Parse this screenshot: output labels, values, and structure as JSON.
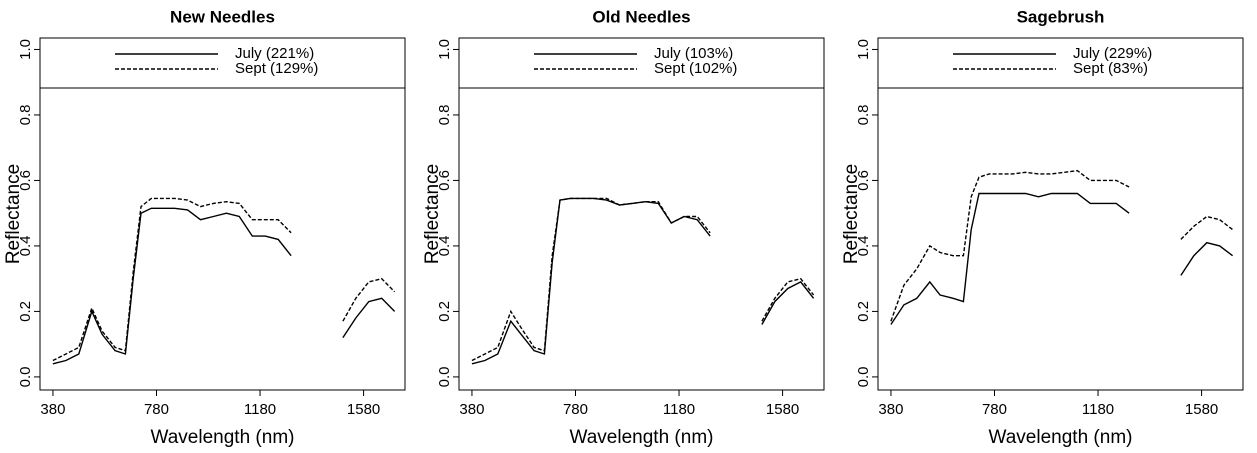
{
  "chart_data": [
    {
      "type": "line",
      "title": "New Needles",
      "x_label": "Wavelength (nm)",
      "y_label": "Reflectance",
      "x": [
        380,
        430,
        480,
        530,
        570,
        620,
        660,
        690,
        720,
        760,
        800,
        850,
        900,
        950,
        1000,
        1050,
        1100,
        1150,
        1200,
        1250,
        1300,
        1400,
        1500,
        1550,
        1600,
        1650,
        1700
      ],
      "series": [
        {
          "name": "July (221%)",
          "color": "#000000",
          "dash": false,
          "values": [
            0.04,
            0.05,
            0.07,
            0.2,
            0.13,
            0.08,
            0.07,
            0.3,
            0.5,
            0.515,
            0.515,
            0.515,
            0.51,
            0.48,
            0.49,
            0.5,
            0.49,
            0.43,
            0.43,
            0.42,
            0.37,
            null,
            0.12,
            0.18,
            0.23,
            0.24,
            0.2
          ]
        },
        {
          "name": "Sept (129%)",
          "color": "#000000",
          "dash": true,
          "values": [
            0.05,
            0.07,
            0.09,
            0.21,
            0.14,
            0.09,
            0.08,
            0.32,
            0.52,
            0.545,
            0.545,
            0.545,
            0.54,
            0.52,
            0.53,
            0.535,
            0.53,
            0.48,
            0.48,
            0.48,
            0.44,
            null,
            0.17,
            0.24,
            0.29,
            0.3,
            0.26
          ]
        }
      ],
      "xlim": [
        330,
        1740
      ],
      "ylim": [
        -0.04,
        1.035
      ],
      "xticks": [
        380,
        780,
        1180,
        1580
      ],
      "yticks": [
        {
          "value": 0,
          "label": "0.0"
        },
        {
          "value": 0.2,
          "label": "0.2"
        },
        {
          "value": 0.4,
          "label": "0.4"
        },
        {
          "value": 0.6,
          "label": "0.6"
        },
        {
          "value": 0.8,
          "label": "0.8"
        },
        {
          "value": 1,
          "label": "1.0"
        }
      ]
    },
    {
      "type": "line",
      "title": "Old Needles",
      "x_label": "Wavelength (nm)",
      "y_label": "Reflectance",
      "x": [
        380,
        430,
        480,
        530,
        570,
        620,
        660,
        690,
        720,
        760,
        800,
        850,
        900,
        950,
        1000,
        1050,
        1100,
        1150,
        1200,
        1250,
        1300,
        1400,
        1500,
        1550,
        1600,
        1650,
        1700
      ],
      "series": [
        {
          "name": "July (103%)",
          "color": "#000000",
          "dash": false,
          "values": [
            0.04,
            0.05,
            0.07,
            0.17,
            0.13,
            0.08,
            0.07,
            0.35,
            0.54,
            0.545,
            0.545,
            0.545,
            0.54,
            0.525,
            0.53,
            0.535,
            0.53,
            0.47,
            0.49,
            0.48,
            0.43,
            null,
            0.16,
            0.23,
            0.27,
            0.29,
            0.24
          ]
        },
        {
          "name": "Sept (102%)",
          "color": "#000000",
          "dash": true,
          "values": [
            0.05,
            0.07,
            0.09,
            0.2,
            0.15,
            0.09,
            0.08,
            0.37,
            0.54,
            0.545,
            0.545,
            0.545,
            0.545,
            0.525,
            0.53,
            0.535,
            0.535,
            0.47,
            0.49,
            0.49,
            0.44,
            null,
            0.17,
            0.24,
            0.29,
            0.3,
            0.25
          ]
        }
      ],
      "xlim": [
        330,
        1740
      ],
      "ylim": [
        -0.04,
        1.035
      ],
      "xticks": [
        380,
        780,
        1180,
        1580
      ],
      "yticks": [
        {
          "value": 0,
          "label": "0.0"
        },
        {
          "value": 0.2,
          "label": "0.2"
        },
        {
          "value": 0.4,
          "label": "0.4"
        },
        {
          "value": 0.6,
          "label": "0.6"
        },
        {
          "value": 0.8,
          "label": "0.8"
        },
        {
          "value": 1,
          "label": "1.0"
        }
      ]
    },
    {
      "type": "line",
      "title": "Sagebrush",
      "x_label": "Wavelength (nm)",
      "y_label": "Reflectance",
      "x": [
        380,
        430,
        480,
        530,
        570,
        620,
        660,
        690,
        720,
        760,
        800,
        850,
        900,
        950,
        1000,
        1050,
        1100,
        1150,
        1200,
        1250,
        1300,
        1400,
        1500,
        1550,
        1600,
        1650,
        1700
      ],
      "series": [
        {
          "name": "July (229%)",
          "color": "#000000",
          "dash": false,
          "values": [
            0.16,
            0.22,
            0.24,
            0.29,
            0.25,
            0.24,
            0.23,
            0.45,
            0.56,
            0.56,
            0.56,
            0.56,
            0.56,
            0.55,
            0.56,
            0.56,
            0.56,
            0.53,
            0.53,
            0.53,
            0.5,
            null,
            0.31,
            0.37,
            0.41,
            0.4,
            0.37
          ]
        },
        {
          "name": "Sept (83%)",
          "color": "#000000",
          "dash": true,
          "values": [
            0.17,
            0.28,
            0.33,
            0.4,
            0.38,
            0.37,
            0.37,
            0.55,
            0.61,
            0.62,
            0.62,
            0.62,
            0.625,
            0.62,
            0.62,
            0.625,
            0.63,
            0.6,
            0.6,
            0.6,
            0.58,
            null,
            0.42,
            0.46,
            0.49,
            0.48,
            0.45
          ]
        }
      ],
      "xlim": [
        330,
        1740
      ],
      "ylim": [
        -0.04,
        1.035
      ],
      "xticks": [
        380,
        780,
        1180,
        1580
      ],
      "yticks": [
        {
          "value": 0,
          "label": "0.0"
        },
        {
          "value": 0.2,
          "label": "0.2"
        },
        {
          "value": 0.4,
          "label": "0.4"
        },
        {
          "value": 0.6,
          "label": "0.6"
        },
        {
          "value": 0.8,
          "label": "0.8"
        },
        {
          "value": 1,
          "label": "1.0"
        }
      ]
    }
  ]
}
